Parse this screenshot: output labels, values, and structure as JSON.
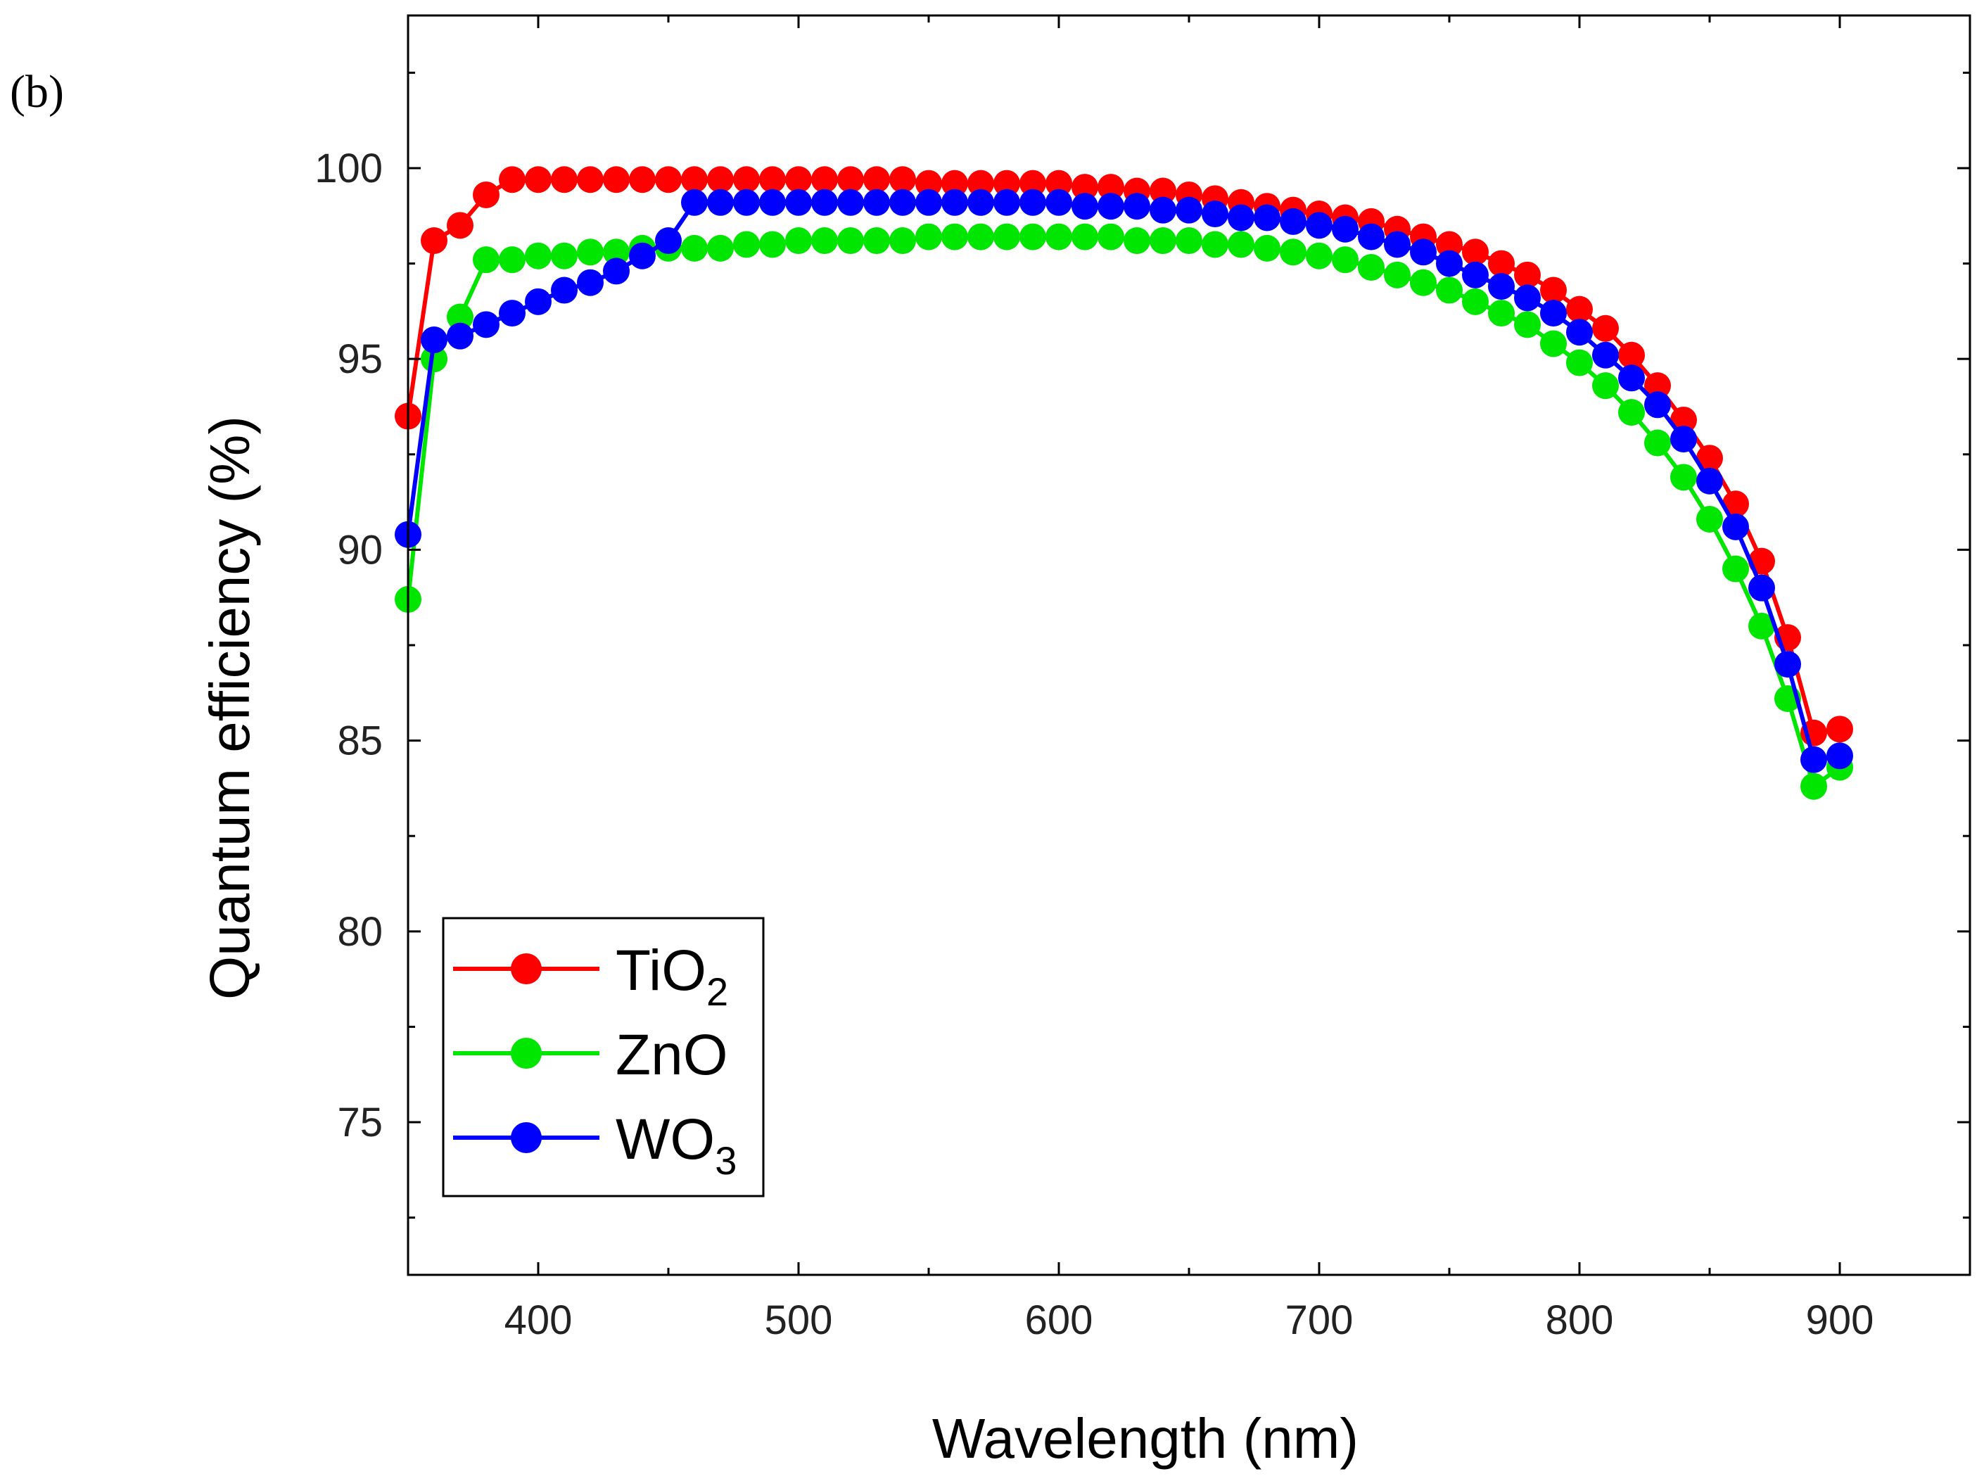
{
  "chart_data": {
    "type": "line",
    "panel_label": "(b)",
    "title": "",
    "xlabel": "Wavelength (nm)",
    "ylabel": "Quantum efficiency (%)",
    "xlim": [
      350,
      950
    ],
    "ylim": [
      71,
      104
    ],
    "xticks": [
      400,
      500,
      600,
      700,
      800,
      900
    ],
    "yticks": [
      75,
      80,
      85,
      90,
      95,
      100
    ],
    "grid": false,
    "legend_position": "bottom-left",
    "x": [
      350,
      360,
      370,
      380,
      390,
      400,
      410,
      420,
      430,
      440,
      450,
      460,
      470,
      480,
      490,
      500,
      510,
      520,
      530,
      540,
      550,
      560,
      570,
      580,
      590,
      600,
      610,
      620,
      630,
      640,
      650,
      660,
      670,
      680,
      690,
      700,
      710,
      720,
      730,
      740,
      750,
      760,
      770,
      780,
      790,
      800,
      810,
      820,
      830,
      840,
      850,
      860,
      870,
      880,
      890,
      900
    ],
    "series": [
      {
        "name": "TiO",
        "subscript": "2",
        "color": "#ff0000",
        "values": [
          93.5,
          98.1,
          98.5,
          99.3,
          99.7,
          99.7,
          99.7,
          99.7,
          99.7,
          99.7,
          99.7,
          99.7,
          99.7,
          99.7,
          99.7,
          99.7,
          99.7,
          99.7,
          99.7,
          99.7,
          99.6,
          99.6,
          99.6,
          99.6,
          99.6,
          99.6,
          99.5,
          99.5,
          99.4,
          99.4,
          99.3,
          99.2,
          99.1,
          99.0,
          98.9,
          98.8,
          98.7,
          98.6,
          98.4,
          98.2,
          98.0,
          97.8,
          97.5,
          97.2,
          96.8,
          96.3,
          95.8,
          95.1,
          94.3,
          93.4,
          92.4,
          91.2,
          89.7,
          87.7,
          85.2,
          85.3
        ]
      },
      {
        "name": "ZnO",
        "subscript": "",
        "color": "#00e600",
        "values": [
          88.7,
          95.0,
          96.1,
          97.6,
          97.6,
          97.7,
          97.7,
          97.8,
          97.8,
          97.9,
          97.9,
          97.9,
          97.9,
          98.0,
          98.0,
          98.1,
          98.1,
          98.1,
          98.1,
          98.1,
          98.2,
          98.2,
          98.2,
          98.2,
          98.2,
          98.2,
          98.2,
          98.2,
          98.1,
          98.1,
          98.1,
          98.0,
          98.0,
          97.9,
          97.8,
          97.7,
          97.6,
          97.4,
          97.2,
          97.0,
          96.8,
          96.5,
          96.2,
          95.9,
          95.4,
          94.9,
          94.3,
          93.6,
          92.8,
          91.9,
          90.8,
          89.5,
          88.0,
          86.1,
          83.8,
          84.3
        ]
      },
      {
        "name": "WO",
        "subscript": "3",
        "color": "#0000ff",
        "values": [
          90.4,
          95.5,
          95.6,
          95.9,
          96.2,
          96.5,
          96.8,
          97.0,
          97.3,
          97.7,
          98.1,
          99.1,
          99.1,
          99.1,
          99.1,
          99.1,
          99.1,
          99.1,
          99.1,
          99.1,
          99.1,
          99.1,
          99.1,
          99.1,
          99.1,
          99.1,
          99.0,
          99.0,
          99.0,
          98.9,
          98.9,
          98.8,
          98.7,
          98.7,
          98.6,
          98.5,
          98.4,
          98.2,
          98.0,
          97.8,
          97.5,
          97.2,
          96.9,
          96.6,
          96.2,
          95.7,
          95.1,
          94.5,
          93.8,
          92.9,
          91.8,
          90.6,
          89.0,
          87.0,
          84.5,
          84.6
        ]
      }
    ]
  }
}
